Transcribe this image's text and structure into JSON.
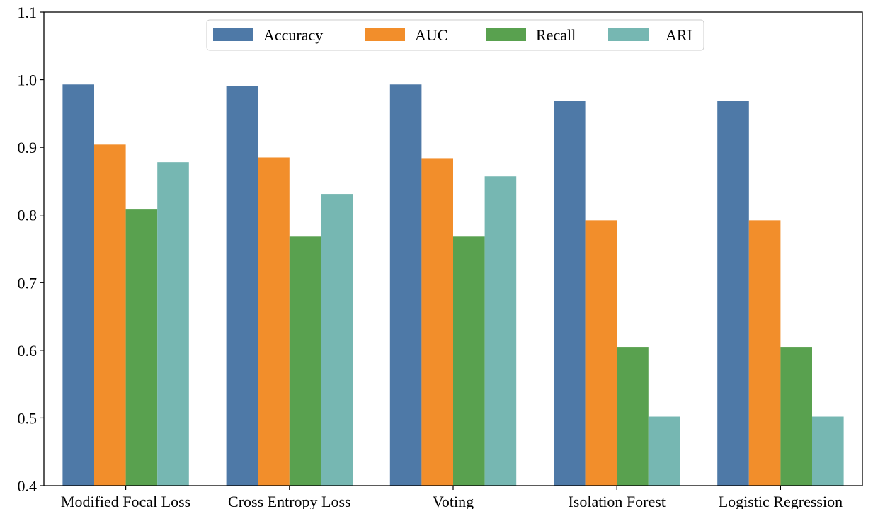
{
  "chart_data": {
    "type": "bar",
    "title": "",
    "xlabel": "",
    "ylabel": "",
    "ylim": [
      0.4,
      1.1
    ],
    "yticks": [
      0.4,
      0.5,
      0.6,
      0.7,
      0.8,
      0.9,
      1.0,
      1.1
    ],
    "ytick_labels": [
      "0.4",
      "0.5",
      "0.6",
      "0.7",
      "0.8",
      "0.9",
      "1.0",
      "1.1"
    ],
    "categories": [
      "Modified Focal Loss",
      "Cross Entropy Loss",
      "Voting",
      "Isolation Forest",
      "Logistic Regression"
    ],
    "series": [
      {
        "name": "Accuracy",
        "color": "#4e79a7",
        "values": [
          0.993,
          0.991,
          0.993,
          0.969,
          0.969
        ]
      },
      {
        "name": "AUC",
        "color": "#f28e2b",
        "values": [
          0.904,
          0.885,
          0.884,
          0.792,
          0.792
        ]
      },
      {
        "name": "Recall",
        "color": "#59a14f",
        "values": [
          0.809,
          0.768,
          0.768,
          0.605,
          0.605
        ]
      },
      {
        "name": "ARI",
        "color": "#76b7b2",
        "values": [
          0.878,
          0.831,
          0.857,
          0.502,
          0.502
        ]
      }
    ],
    "legend_position": "top-center",
    "grid": false
  }
}
